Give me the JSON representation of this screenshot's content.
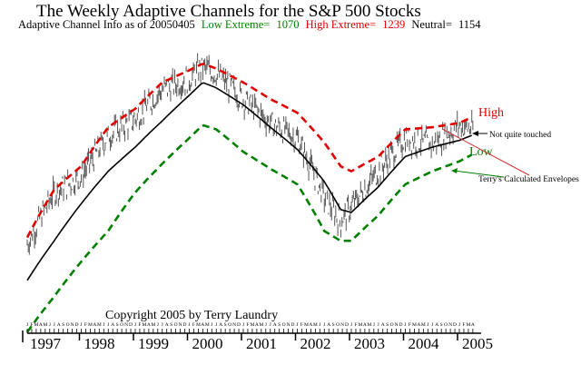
{
  "title": "The Weekly Adaptive Channels for the S&P 500 Stocks",
  "info": {
    "label": "Adaptive Channel Info as of 20050405",
    "low_label": "Low Extreme=",
    "low_value": "1070",
    "high_label": "High Extreme=",
    "high_value": "1239",
    "neutral_label": "Neutral=",
    "neutral_value": "1154"
  },
  "copyright": "Copyright 2005 by Terry Laundry",
  "colors": {
    "high": "#e00000",
    "low": "#008000",
    "neutral": "#000000",
    "price": "#555555",
    "annotation_red": "#cc3333"
  },
  "chart_data": {
    "type": "line",
    "title": "The Weekly Adaptive Channels for the S&P 500 Stocks",
    "xlabel": "",
    "ylabel": "",
    "scale": "log",
    "ylim": [
      600,
      1700
    ],
    "x_tick_labels": [
      "1997",
      "1998",
      "1999",
      "2000",
      "2001",
      "2002",
      "2003",
      "2004",
      "2005"
    ],
    "month_letters": "JFMAMJJASOND",
    "x": [
      1997.0,
      1997.5,
      1998.0,
      1998.5,
      1999.0,
      1999.5,
      2000.0,
      2000.25,
      2000.5,
      2001.0,
      2001.5,
      2002.0,
      2002.5,
      2002.8,
      2003.0,
      2003.5,
      2004.0,
      2004.5,
      2005.0,
      2005.25
    ],
    "series": [
      {
        "name": "High",
        "style": "dashed",
        "color": "#e00000",
        "values": [
          770,
          930,
          1020,
          1190,
          1280,
          1420,
          1490,
          1530,
          1500,
          1420,
          1330,
          1260,
          1120,
          1020,
          1000,
          1060,
          1180,
          1190,
          1210,
          1240
        ]
      },
      {
        "name": "Neutral",
        "style": "solid",
        "color": "#000000",
        "values": [
          650,
          760,
          880,
          1000,
          1100,
          1220,
          1350,
          1420,
          1390,
          1300,
          1190,
          1090,
          960,
          860,
          850,
          940,
          1060,
          1100,
          1130,
          1154
        ]
      },
      {
        "name": "Low",
        "style": "dashed",
        "color": "#008000",
        "values": [
          530,
          610,
          700,
          790,
          920,
          1030,
          1140,
          1200,
          1180,
          1080,
          1010,
          950,
          790,
          760,
          760,
          840,
          950,
          1000,
          1040,
          1070
        ]
      },
      {
        "name": "Price",
        "style": "bars",
        "color": "#555555",
        "values": [
          750,
          920,
          980,
          1150,
          1230,
          1380,
          1440,
          1510,
          1470,
          1330,
          1210,
          1140,
          900,
          820,
          870,
          1000,
          1140,
          1110,
          1200,
          1180
        ]
      }
    ],
    "annotations": [
      {
        "text": "High",
        "color": "#e00000"
      },
      {
        "text": "Low",
        "color": "#008000"
      },
      {
        "text": "Not quite touched",
        "color": "#000000"
      },
      {
        "text": "Terry's Calculated Envelopes",
        "color": "#000000"
      }
    ]
  }
}
